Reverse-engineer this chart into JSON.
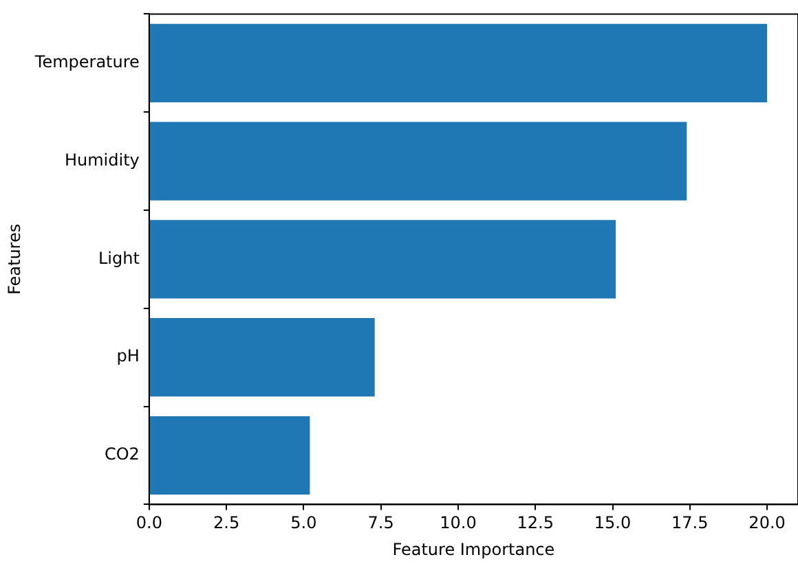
{
  "chart_data": {
    "type": "bar",
    "orientation": "horizontal",
    "xlabel": "Feature Importance",
    "ylabel": "Features",
    "categories": [
      "Temperature",
      "Humidity",
      "Light",
      "pH",
      "CO2"
    ],
    "values": [
      20.0,
      17.4,
      15.1,
      7.3,
      5.2
    ],
    "color": "#1f77b4",
    "xlim": [
      0,
      21
    ],
    "xticks": [
      {
        "value": 0,
        "label": "0.0"
      },
      {
        "value": 2.5,
        "label": "2.5"
      },
      {
        "value": 5,
        "label": "5.0"
      },
      {
        "value": 7.5,
        "label": "7.5"
      },
      {
        "value": 10,
        "label": "10.0"
      },
      {
        "value": 12.5,
        "label": "12.5"
      },
      {
        "value": 15,
        "label": "15.0"
      },
      {
        "value": 17.5,
        "label": "17.5"
      },
      {
        "value": 20,
        "label": "20.0"
      }
    ],
    "grid": false,
    "legend": false
  }
}
